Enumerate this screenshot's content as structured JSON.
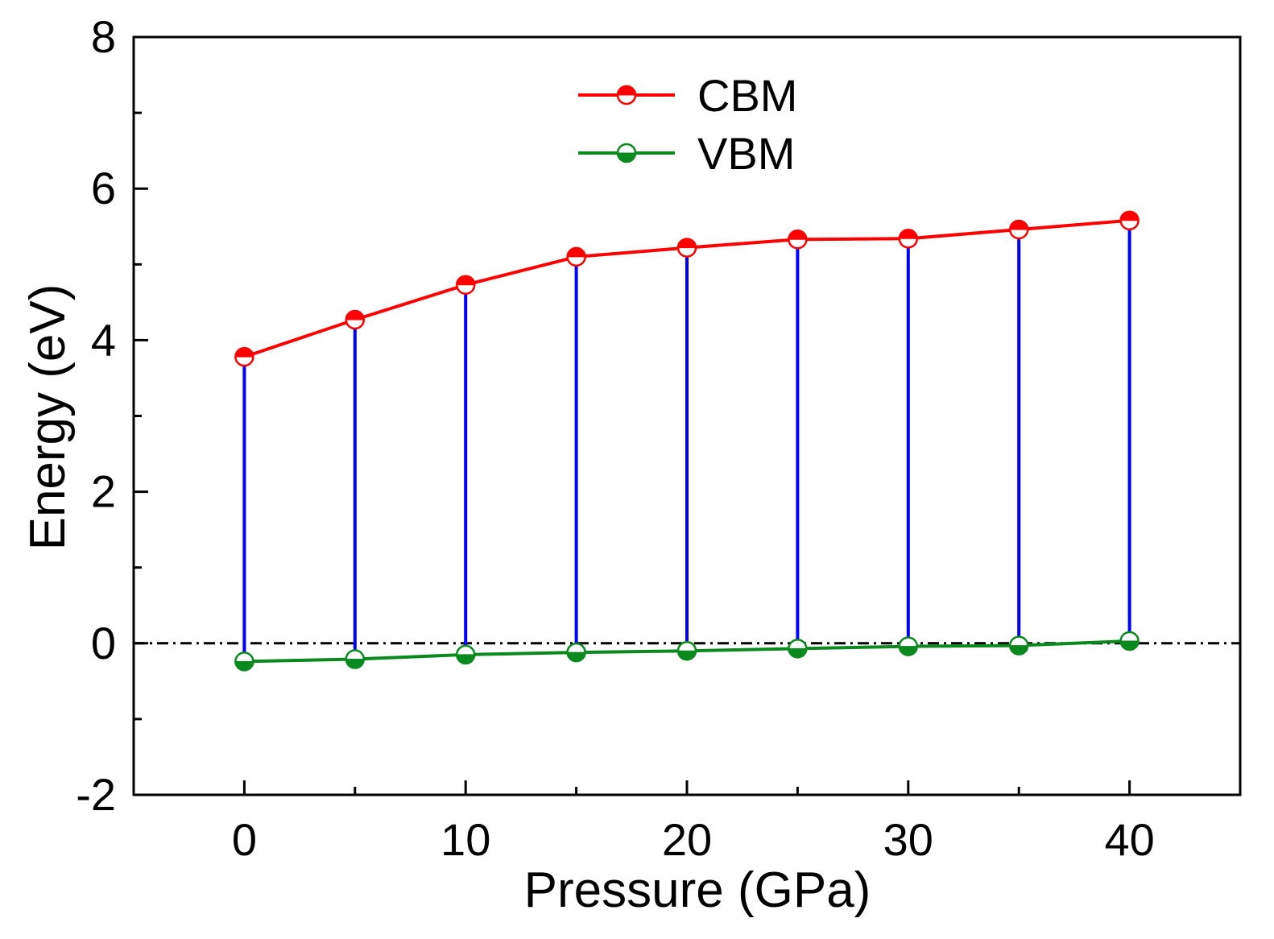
{
  "chart_data": {
    "type": "line",
    "title": "",
    "xlabel": "Pressure (GPa)",
    "ylabel": "Energy (eV)",
    "xlim": [
      -5,
      45
    ],
    "ylim": [
      -2,
      8
    ],
    "xticks": [
      0,
      10,
      20,
      30,
      40
    ],
    "xticklabels": [
      "0",
      "10",
      "20",
      "30",
      "40"
    ],
    "xminorticks": [
      5,
      15,
      25,
      35
    ],
    "yticks": [
      -2,
      0,
      2,
      4,
      6,
      8
    ],
    "yticklabels": [
      "-2",
      "0",
      "2",
      "4",
      "6",
      "8"
    ],
    "x": [
      0,
      5,
      10,
      15,
      20,
      25,
      30,
      35,
      40
    ],
    "series": [
      {
        "name": "CBM",
        "color": "#ff0000",
        "values": [
          3.78,
          4.27,
          4.73,
          5.1,
          5.22,
          5.33,
          5.34,
          5.46,
          5.58
        ]
      },
      {
        "name": "VBM",
        "color": "#0a8a1e",
        "values": [
          -0.24,
          -0.21,
          -0.15,
          -0.12,
          -0.1,
          -0.07,
          -0.04,
          -0.03,
          0.03
        ]
      }
    ],
    "gap_lines": {
      "color": "#0000ff"
    },
    "reference_line": {
      "y": 0,
      "style": "dash-dot",
      "color": "#000000"
    },
    "legend": {
      "placement": "top-center",
      "entries": [
        "CBM",
        "VBM"
      ]
    },
    "grid": false
  }
}
